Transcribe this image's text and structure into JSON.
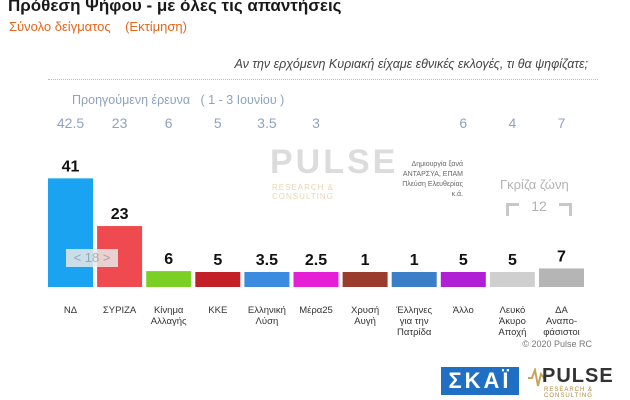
{
  "header": {
    "title": "Πρόθεση Ψήφου - με όλες τις απαντήσεις",
    "subtitle": "Σύνολο δείγματος    (Εκτίμηση)",
    "question": "Αν την ερχόμενη Κυριακή είχαμε εθνικές εκλογές, τι θα ψηφίζατε;",
    "previous_survey_caption": "Προηγούμενη έρευνα   ( 1 - 3 Ιουνίου )"
  },
  "annotations": {
    "small_parties_note": [
      "Δημιουργία ξανά",
      "ΑΝΤΑΡΣΥΑ, ΕΠΑΜ",
      "Πλεύση Ελευθερίας",
      "κ.ά."
    ],
    "grey_zone_label": "Γκρίζα ζώνη",
    "grey_zone_value": "12",
    "syriza_box": "< 18 >",
    "copyright": "© 2020 Pulse RC"
  },
  "logos": {
    "skai": "ΣΚΑΪ",
    "pulse": "PULSE",
    "pulse_tagline": "RESEARCH & CONSULTING"
  },
  "chart_data": {
    "type": "bar",
    "categories": [
      [
        "ΝΔ"
      ],
      [
        "ΣΥΡΙΖΑ"
      ],
      [
        "Κίνημα",
        "Αλλαγής"
      ],
      [
        "ΚΚΕ"
      ],
      [
        "Ελληνική",
        "Λύση"
      ],
      [
        "Μέρα25"
      ],
      [
        "Χρυσή",
        "Αυγή"
      ],
      [
        "Έλληνες",
        "για την",
        "Πατρίδα"
      ],
      [
        "Άλλο"
      ],
      [
        "Λευκό",
        "Άκυρο",
        "Αποχή"
      ],
      [
        "ΔΑ",
        "Αναπο-",
        "φάσιστοι"
      ]
    ],
    "values": [
      41,
      23,
      6,
      5,
      3.5,
      2.5,
      1,
      1,
      5,
      5,
      7
    ],
    "value_labels": [
      "41",
      "23",
      "6",
      "5",
      "3.5",
      "2.5",
      "1",
      "1",
      "5",
      "5",
      "7"
    ],
    "previous_values": [
      "42.5",
      "23",
      "6",
      "5",
      "3.5",
      "3",
      "",
      "",
      "6",
      "4",
      "7"
    ],
    "colors": [
      "#1aa3f0",
      "#ef4a4f",
      "#7ccf25",
      "#c21f26",
      "#3b8be0",
      "#e51fd6",
      "#9b3b2e",
      "#3a7fc8",
      "#b01fd6",
      "#cfcfcf",
      "#b5b5b5"
    ]
  }
}
